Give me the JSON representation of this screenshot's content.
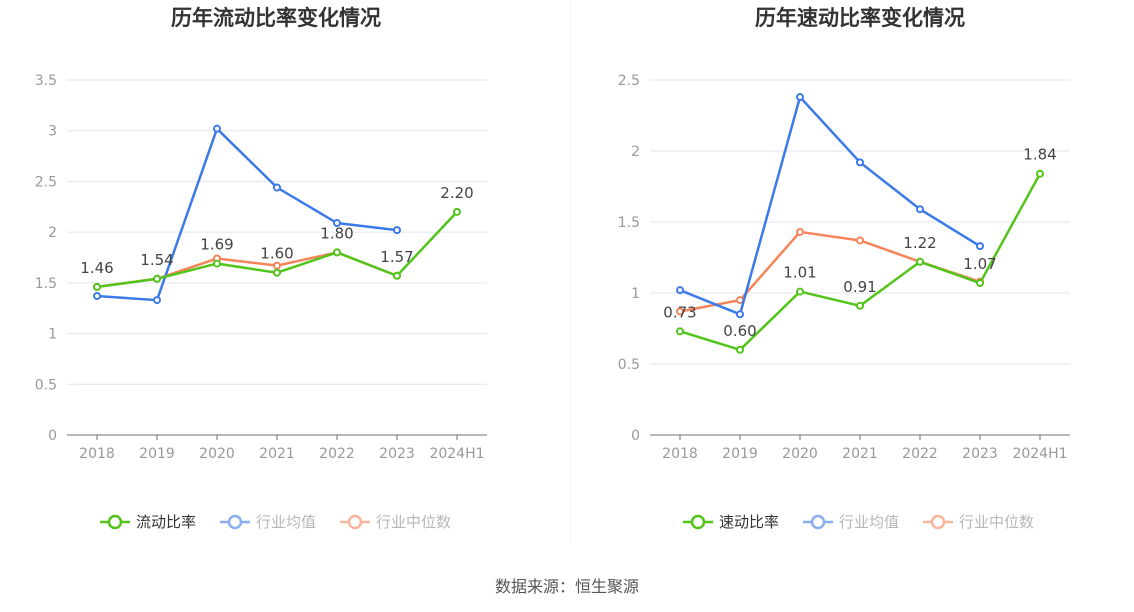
{
  "source": "数据来源：恒生聚源",
  "chart_data": [
    {
      "type": "line",
      "title": "历年流动比率变化情况",
      "categories": [
        "2018",
        "2019",
        "2020",
        "2021",
        "2022",
        "2023",
        "2024H1"
      ],
      "ylim": [
        0,
        3.5
      ],
      "yticks": [
        "0",
        "0.5",
        "1",
        "1.5",
        "2",
        "2.5",
        "3",
        "3.5"
      ],
      "grid": true,
      "legend_position": "bottom",
      "series": [
        {
          "name": "流动比率",
          "color": "#52c41a",
          "values": [
            1.46,
            1.54,
            1.69,
            1.6,
            1.8,
            1.57,
            2.2
          ],
          "labels": [
            "1.46",
            "1.54",
            "1.69",
            "1.60",
            "1.80",
            "1.57",
            "2.20"
          ]
        },
        {
          "name": "行业均值",
          "color": "#3b7ae8",
          "values": [
            1.37,
            1.33,
            3.02,
            2.44,
            2.09,
            2.02,
            null
          ]
        },
        {
          "name": "行业中位数",
          "color": "#f5845a",
          "values": [
            1.46,
            1.54,
            1.74,
            1.67,
            1.8,
            1.57,
            null
          ]
        }
      ]
    },
    {
      "type": "line",
      "title": "历年速动比率变化情况",
      "categories": [
        "2018",
        "2019",
        "2020",
        "2021",
        "2022",
        "2023",
        "2024H1"
      ],
      "ylim": [
        0,
        2.5
      ],
      "yticks": [
        "0",
        "0.5",
        "1",
        "1.5",
        "2",
        "2.5"
      ],
      "grid": true,
      "legend_position": "bottom",
      "series": [
        {
          "name": "速动比率",
          "color": "#52c41a",
          "values": [
            0.73,
            0.6,
            1.01,
            0.91,
            1.22,
            1.07,
            1.84
          ],
          "labels": [
            "0.73",
            "0.60",
            "1.01",
            "0.91",
            "1.22",
            "1.07",
            "1.84"
          ]
        },
        {
          "name": "行业均值",
          "color": "#3b7ae8",
          "values": [
            1.02,
            0.85,
            2.38,
            1.92,
            1.59,
            1.33,
            null
          ]
        },
        {
          "name": "行业中位数",
          "color": "#f5845a",
          "values": [
            0.87,
            0.95,
            1.43,
            1.37,
            1.22,
            1.08,
            null
          ]
        }
      ]
    }
  ]
}
